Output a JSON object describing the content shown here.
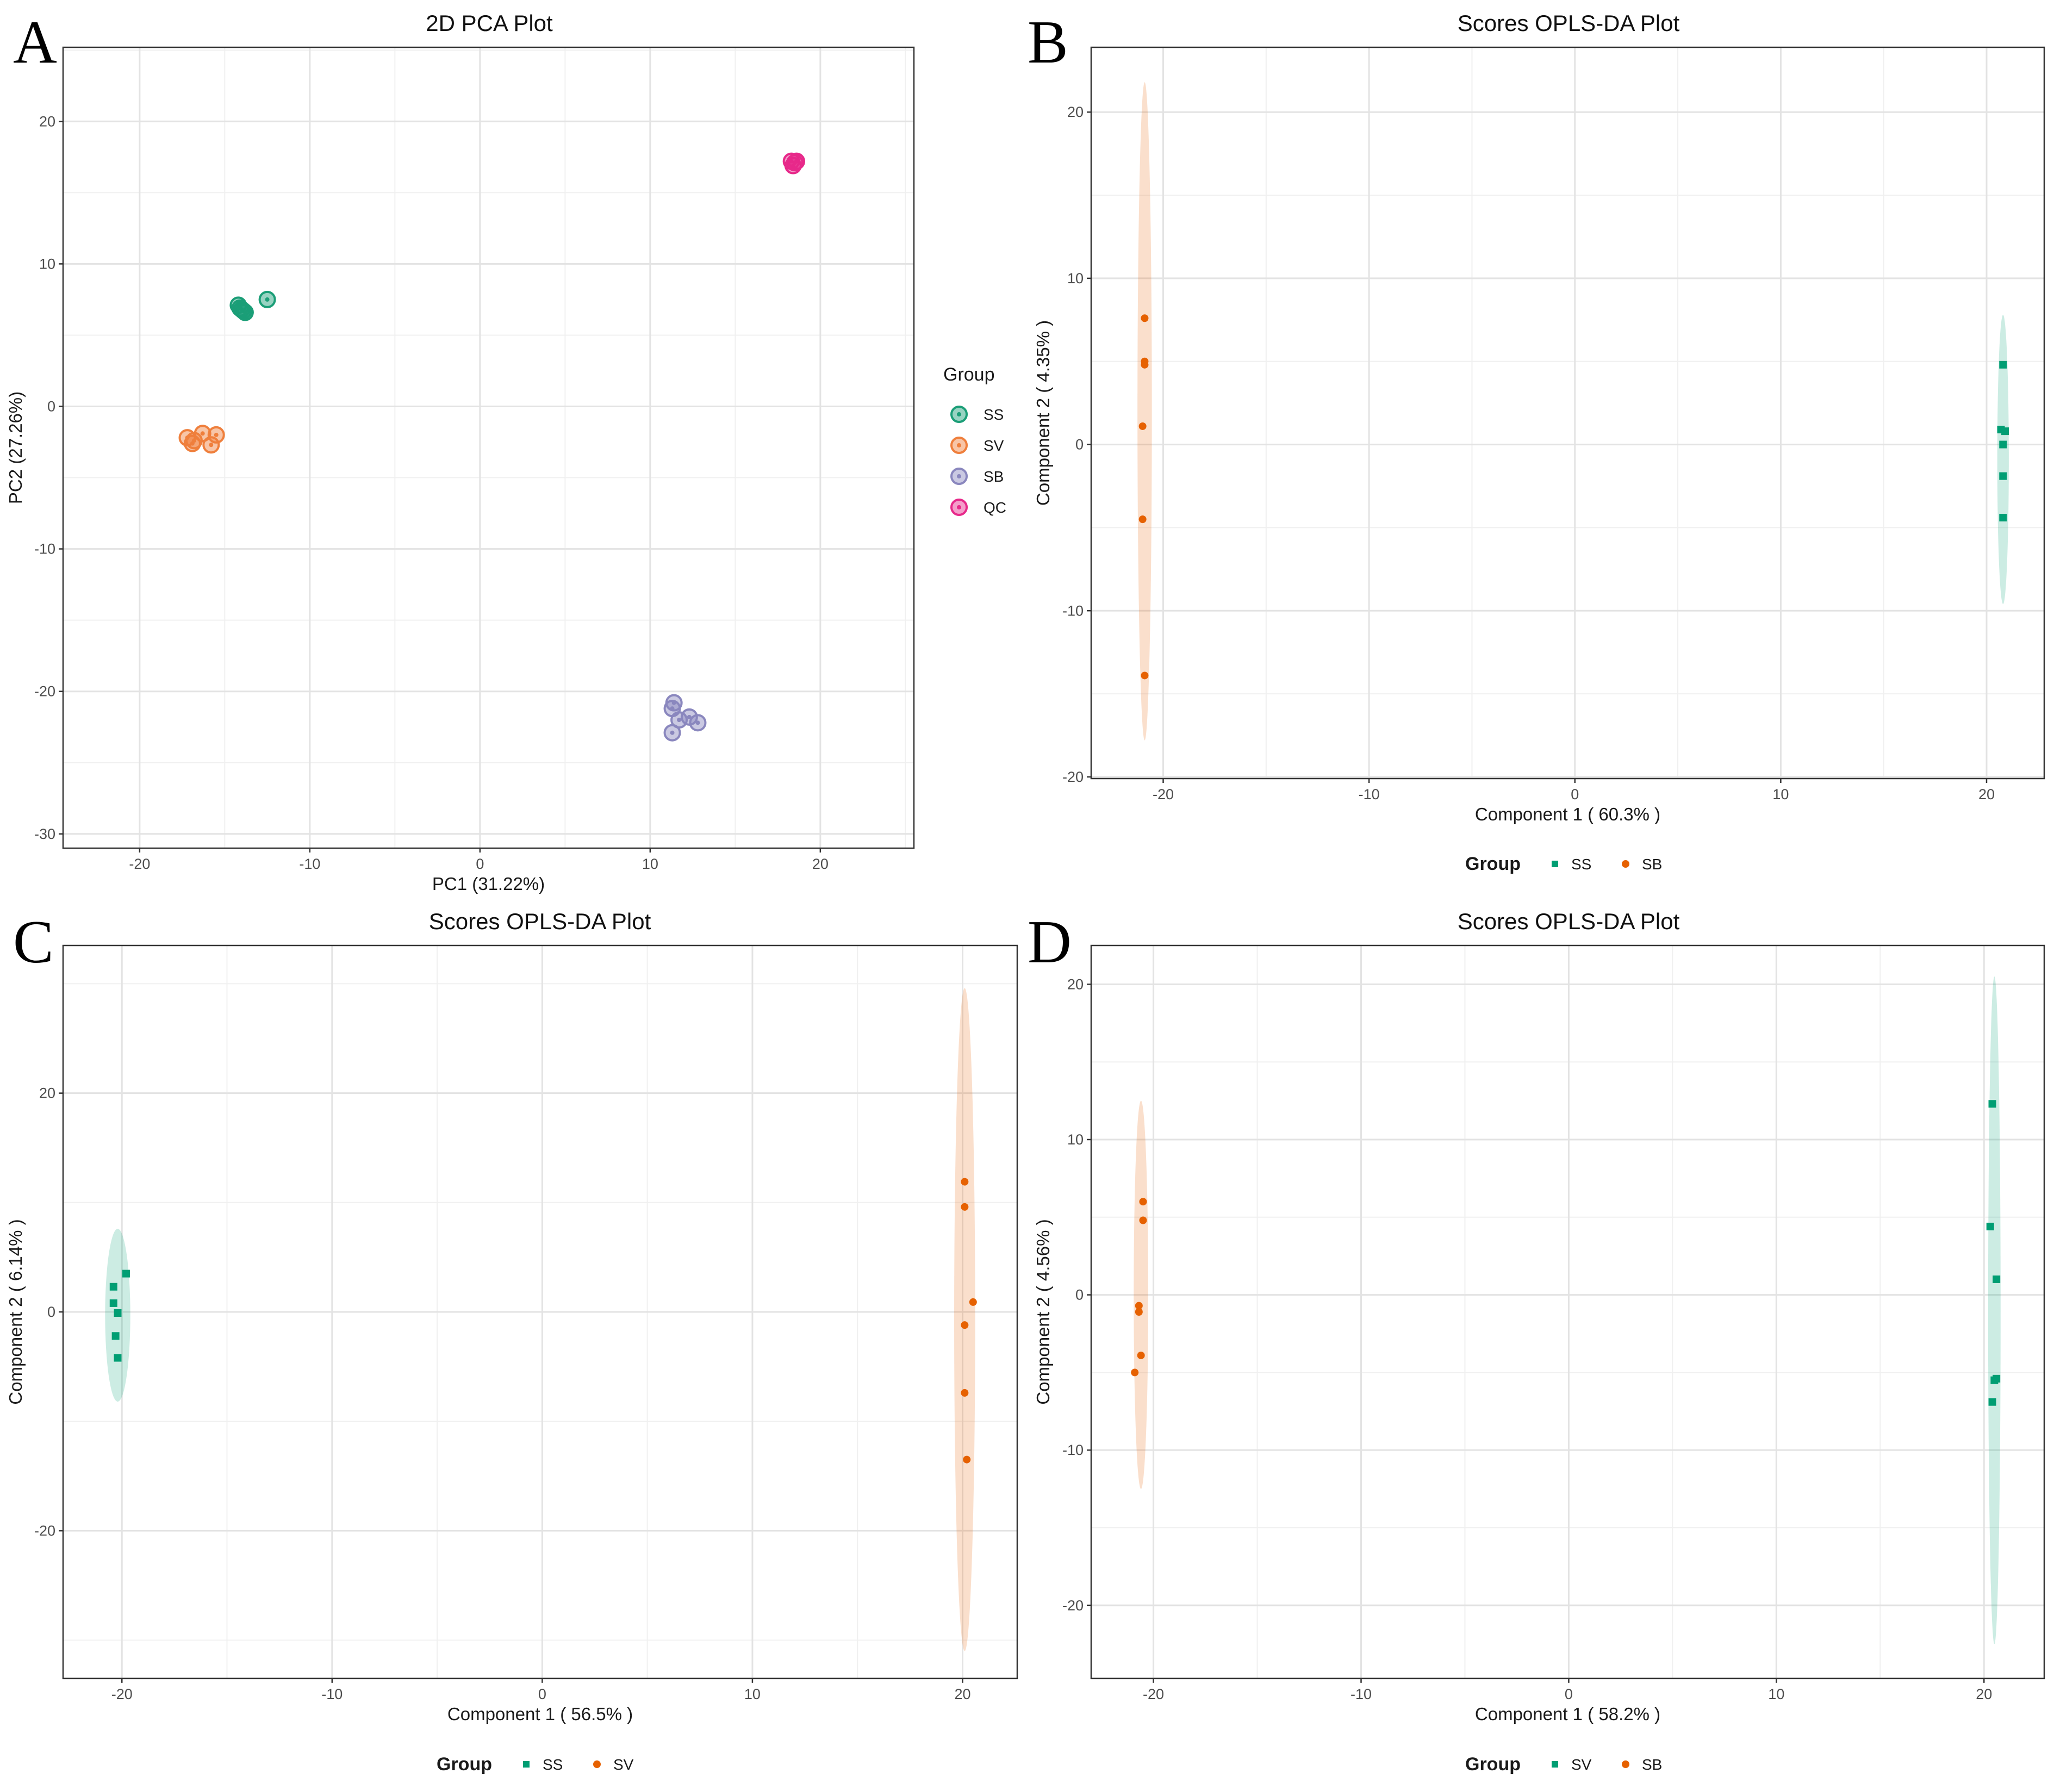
{
  "panels": [
    {
      "letter": "A",
      "chart_data": {
        "type": "scatter",
        "title": "2D PCA Plot",
        "xlabel": "PC1 (31.22%)",
        "ylabel": "PC2 (27.26%)",
        "xlim": [
          -24.5,
          25.5
        ],
        "ylim": [
          -31,
          25.2
        ],
        "xticks": [
          -20,
          -10,
          0,
          10,
          20
        ],
        "yticks": [
          -30,
          -20,
          -10,
          0,
          10,
          20
        ],
        "xtick_labels": [
          "-20",
          "-10",
          "0",
          "10",
          "20"
        ],
        "ytick_labels": [
          "-30",
          "-20",
          "-10",
          "0",
          "10",
          "20"
        ],
        "grid": true,
        "legend": {
          "title": "Group",
          "position": "right",
          "style": "vertical"
        },
        "marker": "ring",
        "series": [
          {
            "name": "SS",
            "color": "#1b9e77",
            "points": [
              [
                -14.2,
                7.1
              ],
              [
                -14.0,
                6.8
              ],
              [
                -13.9,
                6.7
              ],
              [
                -14.1,
                6.9
              ],
              [
                -13.8,
                6.6
              ],
              [
                -12.5,
                7.5
              ]
            ]
          },
          {
            "name": "SV",
            "color": "#ef7f3c",
            "points": [
              [
                -17.2,
                -2.2
              ],
              [
                -16.9,
                -2.6
              ],
              [
                -16.3,
                -1.9
              ],
              [
                -15.8,
                -2.7
              ],
              [
                -15.5,
                -2.0
              ],
              [
                -16.8,
                -2.4
              ]
            ]
          },
          {
            "name": "SB",
            "color": "#8a87be",
            "points": [
              [
                11.4,
                -20.8
              ],
              [
                11.3,
                -21.2
              ],
              [
                11.7,
                -22.0
              ],
              [
                12.3,
                -21.8
              ],
              [
                12.8,
                -22.2
              ],
              [
                11.3,
                -22.9
              ]
            ]
          },
          {
            "name": "QC",
            "color": "#e7298a",
            "points": [
              [
                18.3,
                17.2
              ],
              [
                18.6,
                17.2
              ],
              [
                18.4,
                16.9
              ],
              [
                18.5,
                17.1
              ]
            ]
          }
        ]
      }
    },
    {
      "letter": "B",
      "chart_data": {
        "type": "scatter",
        "title": "Scores OPLS-DA Plot",
        "xlabel": "Component 1 ( 60.3% )",
        "ylabel": "Component 2 ( 4.35% )",
        "xlim": [
          -23.5,
          22.8
        ],
        "ylim": [
          -20.1,
          23.9
        ],
        "xticks": [
          -20,
          -10,
          0,
          10,
          20
        ],
        "yticks": [
          -20,
          -10,
          0,
          10,
          20
        ],
        "xtick_labels": [
          "-20",
          "-10",
          "0",
          "10",
          "20"
        ],
        "ytick_labels": [
          "-20",
          "-10",
          "0",
          "10",
          "20"
        ],
        "grid": true,
        "legend": {
          "title": "Group",
          "position": "bottom",
          "style": "horizontal"
        },
        "series": [
          {
            "name": "SS",
            "color": "#009e73",
            "marker": "square",
            "points": [
              [
                20.8,
                4.8
              ],
              [
                20.7,
                0.9
              ],
              [
                20.9,
                0.8
              ],
              [
                20.8,
                0.0
              ],
              [
                20.8,
                -1.9
              ],
              [
                20.8,
                -4.4
              ]
            ],
            "ellipse": {
              "cx": 20.8,
              "cy": -0.9,
              "rx": 0.28,
              "ry": 8.7
            }
          },
          {
            "name": "SB",
            "color": "#e66101",
            "marker": "circle",
            "points": [
              [
                -20.9,
                7.6
              ],
              [
                -20.9,
                5.0
              ],
              [
                -20.9,
                4.8
              ],
              [
                -21.0,
                1.1
              ],
              [
                -21.0,
                -4.5
              ],
              [
                -20.9,
                -13.9
              ]
            ],
            "ellipse": {
              "cx": -20.9,
              "cy": 2.0,
              "rx": 0.35,
              "ry": 19.8
            }
          }
        ]
      }
    },
    {
      "letter": "C",
      "chart_data": {
        "type": "scatter",
        "title": "Scores OPLS-DA Plot",
        "xlabel": "Component 1 ( 56.5% )",
        "ylabel": "Component 2 ( 6.14% )",
        "xlim": [
          -22.8,
          22.6
        ],
        "ylim": [
          -33.5,
          33.5
        ],
        "xticks": [
          -20,
          -10,
          0,
          10,
          20
        ],
        "yticks": [
          -20,
          0,
          20
        ],
        "xtick_labels": [
          "-20",
          "-10",
          "0",
          "10",
          "20"
        ],
        "ytick_labels": [
          "-20",
          "0",
          "20"
        ],
        "grid": true,
        "legend": {
          "title": "Group",
          "position": "bottom",
          "style": "horizontal"
        },
        "series": [
          {
            "name": "SS",
            "color": "#009e73",
            "marker": "square",
            "points": [
              [
                -19.8,
                3.5
              ],
              [
                -20.4,
                2.3
              ],
              [
                -20.4,
                0.8
              ],
              [
                -20.2,
                -0.1
              ],
              [
                -20.3,
                -2.2
              ],
              [
                -20.2,
                -4.2
              ]
            ],
            "ellipse": {
              "cx": -20.2,
              "cy": -0.3,
              "rx": 0.6,
              "ry": 7.9
            }
          },
          {
            "name": "SV",
            "color": "#e66101",
            "marker": "circle",
            "points": [
              [
                20.1,
                11.9
              ],
              [
                20.1,
                9.6
              ],
              [
                20.5,
                0.9
              ],
              [
                20.1,
                -1.2
              ],
              [
                20.1,
                -7.4
              ],
              [
                20.2,
                -13.5
              ]
            ],
            "ellipse": {
              "cx": 20.1,
              "cy": -0.7,
              "rx": 0.5,
              "ry": 30.3
            }
          }
        ]
      }
    },
    {
      "letter": "D",
      "chart_data": {
        "type": "scatter",
        "title": "Scores OPLS-DA Plot",
        "xlabel": "Component 1 ( 58.2% )",
        "ylabel": "Component 2 ( 4.56% )",
        "xlim": [
          -23.0,
          22.9
        ],
        "ylim": [
          -24.7,
          22.5
        ],
        "xticks": [
          -20,
          -10,
          0,
          10,
          20
        ],
        "yticks": [
          -20,
          -10,
          0,
          10,
          20
        ],
        "xtick_labels": [
          "-20",
          "-10",
          "0",
          "10",
          "20"
        ],
        "ytick_labels": [
          "-20",
          "-10",
          "0",
          "10",
          "20"
        ],
        "grid": true,
        "legend": {
          "title": "Group",
          "position": "bottom",
          "style": "horizontal"
        },
        "series": [
          {
            "name": "SV",
            "color": "#009e73",
            "marker": "square",
            "points": [
              [
                20.4,
                12.3
              ],
              [
                20.3,
                4.4
              ],
              [
                20.6,
                1.0
              ],
              [
                20.5,
                -5.5
              ],
              [
                20.6,
                -5.4
              ],
              [
                20.4,
                -6.9
              ]
            ],
            "ellipse": {
              "cx": 20.5,
              "cy": -1.0,
              "rx": 0.3,
              "ry": 21.5
            }
          },
          {
            "name": "SB",
            "color": "#e66101",
            "marker": "circle",
            "points": [
              [
                -20.5,
                6.0
              ],
              [
                -20.5,
                4.8
              ],
              [
                -20.7,
                -0.7
              ],
              [
                -20.7,
                -1.1
              ],
              [
                -20.6,
                -3.9
              ],
              [
                -20.9,
                -5.0
              ]
            ],
            "ellipse": {
              "cx": -20.6,
              "cy": 0.0,
              "rx": 0.35,
              "ry": 12.5
            }
          }
        ]
      }
    }
  ]
}
